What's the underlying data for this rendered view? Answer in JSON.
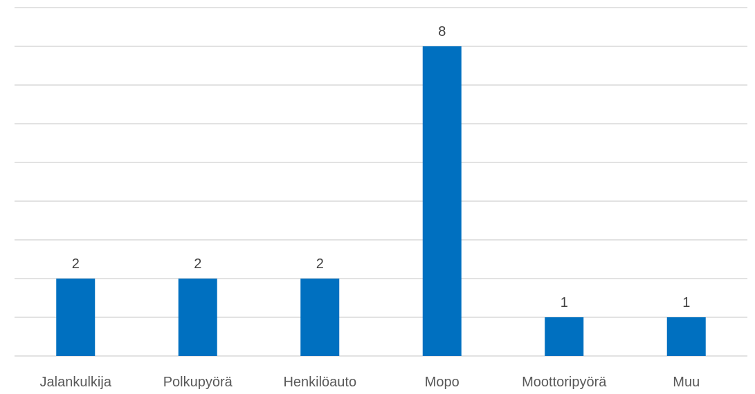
{
  "chart_data": {
    "type": "bar",
    "categories": [
      "Jalankulkija",
      "Polkupyörä",
      "Henkilöauto",
      "Mopo",
      "Moottoripyörä",
      "Muu"
    ],
    "values": [
      2,
      2,
      2,
      8,
      1,
      1
    ],
    "data_labels": [
      "2",
      "2",
      "2",
      "8",
      "1",
      "1"
    ],
    "title": "",
    "xlabel": "",
    "ylabel": "",
    "ylim": [
      0,
      9
    ],
    "grid": true,
    "legend": "none",
    "bar_color": "#0070C0",
    "grid_color": "#d9d9d9"
  }
}
